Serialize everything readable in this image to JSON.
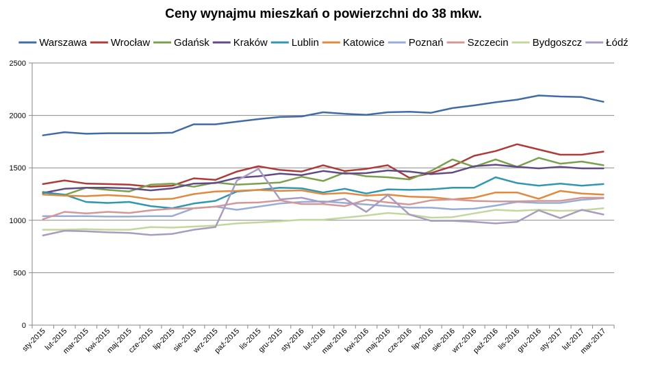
{
  "chart_data": {
    "type": "line",
    "title": "Ceny wynajmu mieszkań o powierzchni do 38 mkw.",
    "xlabel": "",
    "ylabel": "",
    "ylim": [
      0,
      2500
    ],
    "yticks": [
      0,
      500,
      1000,
      1500,
      2000,
      2500
    ],
    "grid": true,
    "legend": "top",
    "categories": [
      "sty-2015",
      "lut-2015",
      "mar-2015",
      "kwi-2015",
      "maj-2015",
      "cze-2015",
      "lip-2015",
      "sie-2015",
      "wrz-2015",
      "paź-2015",
      "lis-2015",
      "gru-2015",
      "sty-2016",
      "lut-2016",
      "mar-2016",
      "kwi-2016",
      "maj-2016",
      "cze-2016",
      "lip-2016",
      "sie-2016",
      "wrz-2016",
      "paź-2016",
      "lis-2016",
      "gru-2016",
      "sty-2017",
      "lut-2017",
      "mar-2017"
    ],
    "series": [
      {
        "name": "Warszawa",
        "color": "#3F6BA8",
        "values": [
          1810,
          1840,
          1825,
          1830,
          1830,
          1830,
          1835,
          1915,
          1915,
          1940,
          1965,
          1985,
          1990,
          2030,
          2015,
          2005,
          2030,
          2035,
          2025,
          2070,
          2095,
          2125,
          2150,
          2190,
          2180,
          2175,
          2130
        ]
      },
      {
        "name": "Wrocław",
        "color": "#AF3A38",
        "values": [
          1345,
          1380,
          1350,
          1345,
          1340,
          1320,
          1330,
          1400,
          1385,
          1465,
          1515,
          1480,
          1465,
          1525,
          1470,
          1490,
          1525,
          1405,
          1450,
          1515,
          1615,
          1660,
          1725,
          1675,
          1625,
          1625,
          1655
        ]
      },
      {
        "name": "Gdańsk",
        "color": "#79A04A",
        "values": [
          1270,
          1240,
          1310,
          1290,
          1275,
          1340,
          1350,
          1320,
          1360,
          1340,
          1350,
          1360,
          1415,
          1375,
          1455,
          1420,
          1410,
          1390,
          1470,
          1580,
          1510,
          1580,
          1510,
          1595,
          1540,
          1560,
          1525
        ]
      },
      {
        "name": "Kraków",
        "color": "#614A86",
        "values": [
          1260,
          1300,
          1310,
          1310,
          1305,
          1285,
          1305,
          1350,
          1355,
          1405,
          1420,
          1445,
          1430,
          1470,
          1445,
          1450,
          1475,
          1465,
          1440,
          1455,
          1515,
          1530,
          1510,
          1495,
          1510,
          1495,
          1495
        ]
      },
      {
        "name": "Lublin",
        "color": "#2F97B0",
        "values": [
          1265,
          1245,
          1175,
          1165,
          1175,
          1135,
          1115,
          1160,
          1185,
          1275,
          1290,
          1310,
          1305,
          1265,
          1300,
          1255,
          1295,
          1290,
          1295,
          1310,
          1310,
          1410,
          1355,
          1330,
          1350,
          1330,
          1345
        ]
      },
      {
        "name": "Katowice",
        "color": "#E2893B",
        "values": [
          1245,
          1235,
          1230,
          1240,
          1230,
          1200,
          1205,
          1250,
          1275,
          1280,
          1290,
          1280,
          1285,
          1250,
          1260,
          1235,
          1245,
          1225,
          1220,
          1200,
          1215,
          1265,
          1265,
          1205,
          1280,
          1255,
          1245
        ]
      },
      {
        "name": "Poznań",
        "color": "#97ADD5",
        "values": [
          1040,
          1040,
          1040,
          1035,
          1035,
          1040,
          1040,
          1115,
          1130,
          1100,
          1130,
          1160,
          1175,
          1180,
          1165,
          1150,
          1135,
          1120,
          1120,
          1105,
          1110,
          1140,
          1175,
          1165,
          1165,
          1195,
          1210
        ]
      },
      {
        "name": "Szczecin",
        "color": "#D59795",
        "values": [
          1010,
          1080,
          1065,
          1080,
          1070,
          1095,
          1110,
          1115,
          1130,
          1165,
          1170,
          1190,
          1155,
          1155,
          1135,
          1195,
          1170,
          1150,
          1190,
          1200,
          1185,
          1180,
          1180,
          1185,
          1185,
          1215,
          1215
        ]
      },
      {
        "name": "Bydgoszcz",
        "color": "#C2D89B",
        "values": [
          910,
          910,
          915,
          910,
          910,
          935,
          930,
          940,
          950,
          970,
          980,
          990,
          1005,
          1005,
          1025,
          1045,
          1070,
          1055,
          1025,
          1030,
          1065,
          1100,
          1090,
          1100,
          1090,
          1095,
          1115
        ]
      },
      {
        "name": "Łódź",
        "color": "#A99BBF",
        "values": [
          855,
          900,
          895,
          885,
          880,
          860,
          870,
          910,
          935,
          1380,
          1490,
          1200,
          1215,
          1170,
          1205,
          1080,
          1240,
          1055,
          995,
          995,
          985,
          970,
          985,
          1095,
          1020,
          1100,
          1055
        ]
      }
    ]
  }
}
